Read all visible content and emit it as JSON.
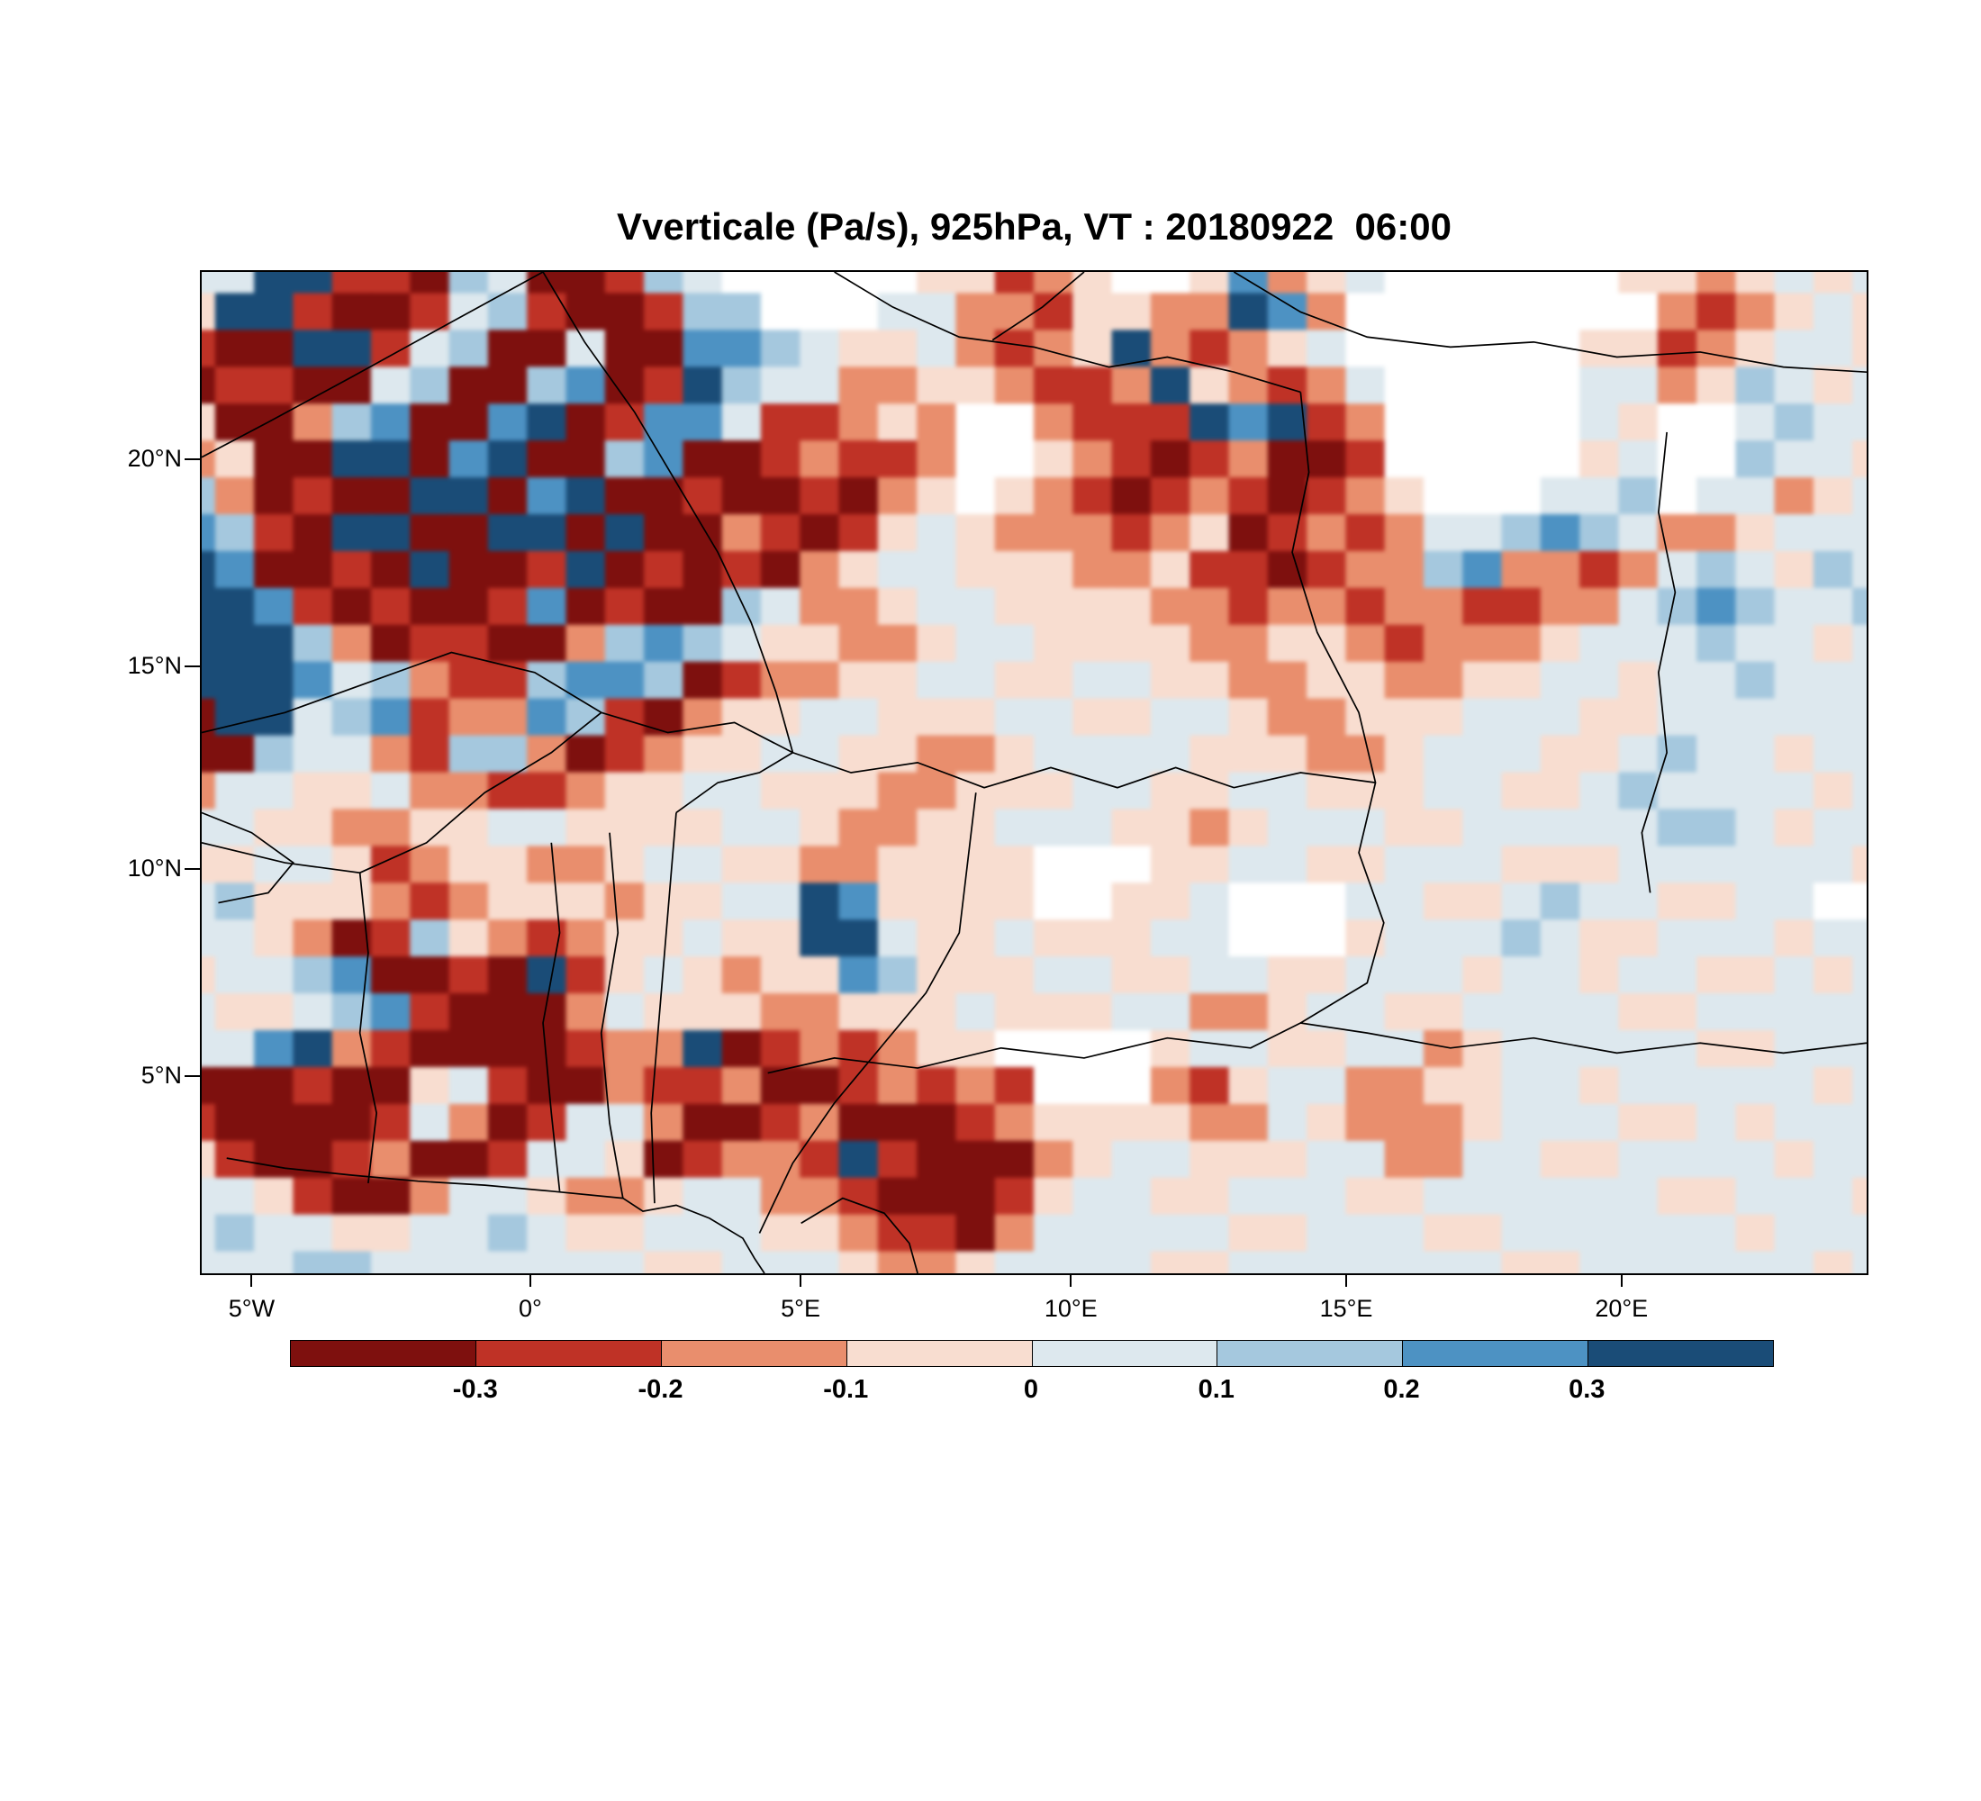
{
  "title": "Vverticale (Pa/s), 925hPa, VT : 20180922  06:00",
  "colorbar": {
    "tick_labels": [
      "-0.3",
      "-0.2",
      "-0.1",
      "0",
      "0.1",
      "0.2",
      "0.3"
    ]
  },
  "chart_data": {
    "type": "heatmap",
    "title": "Vverticale (Pa/s), 925hPa, VT : 20180922  06:00",
    "variable": "Vverticale",
    "units": "Pa/s",
    "pressure_level": "925hPa",
    "valid_time": "20180922 06:00",
    "x_ticks": [
      {
        "label": "5°W",
        "pos": 3.1
      },
      {
        "label": "0°",
        "pos": 19.8
      },
      {
        "label": "5°E",
        "pos": 36.0
      },
      {
        "label": "10°E",
        "pos": 52.2
      },
      {
        "label": "15°E",
        "pos": 68.7
      },
      {
        "label": "20°E",
        "pos": 85.2
      }
    ],
    "y_ticks": [
      {
        "label": "20°N",
        "pos": 18.8
      },
      {
        "label": "15°N",
        "pos": 39.4
      },
      {
        "label": "10°N",
        "pos": 59.6
      },
      {
        "label": "5°N",
        "pos": 80.2
      }
    ],
    "lon_range": [
      -6,
      24.5
    ],
    "lat_range": [
      0,
      24.6
    ],
    "levels": [
      -0.3,
      -0.2,
      -0.1,
      0,
      0.1,
      0.2,
      0.3
    ],
    "value_bins": [
      "<-0.3",
      "-0.3..-0.2",
      "-0.2..-0.1",
      "-0.1..0",
      "0..0.1",
      "0.1..0.2",
      "0.2..0.3",
      ">0.3"
    ],
    "palette": [
      "#7e100e",
      "#bf3226",
      "#e98e6d",
      "#f8ddd0",
      "#dde8ee",
      "#a5c8de",
      "#4d92c3",
      "#1a4c77"
    ],
    "nodata_color": "#ffffff",
    "grid_encoding": "each row string: chars 0-7 = palette bin index, w = no-data (white)",
    "grid": [
      "44771105400154wwwww33123ww36234wwwwww3323434",
      "377100145100155www442213322762wwwwwwww212343",
      "100771450040066543342123721234wwwwww33123443",
      "0110045005601754422332112732124wwwww44235434",
      "30025600670166411232ww211176712wwwww43ww4544",
      "23007706700560012112ww321012001wwwww34ww5443",
      "52010077067001001023w32101210123www445w44234",
      "65107700770700210134322212301212445654223444",
      "76001070017010102344333223110122562212454354",
      "77610100160100542234433332212212211224565445",
      "77752011002565433223443333223321222344454434",
      "77764521156650122334433443322332233443445444",
      "07745612265102334433344334432233344433444444",
      "00544215520123344332234444333223444334544344",
      "24433422112334433322333443344333443345444434",
      "44332233443333443223344433234443344444554344",
      "3344312332234433223333www3344334443334444443",
      "4533321233323344763333ww334www443345443344ww",
      "443201532123343377433433344www34445433444344",
      "34456001071343233653334433443344434434433434",
      "43345610002433322333433344223443344443344444",
      "446721000012270121233wwww3443344234444433444",
      "0001003410021120012121www2134422334434444434",
      "10000142014420012000123333224322234443343444",
      "31001200144301221710002344333442244334444344",
      "44310024432234422100013443344433444444334443",
      "45443344543344433211024444433444334444443444",
      "44455444444433444322344443344444443344444434"
    ],
    "borders": [
      [
        [
          20.5,
          0
        ],
        [
          15,
          5
        ],
        [
          9,
          10.5
        ],
        [
          4,
          15
        ],
        [
          0,
          18.5
        ]
      ],
      [
        [
          20.5,
          0
        ],
        [
          23,
          7
        ],
        [
          26,
          14
        ],
        [
          28.5,
          21
        ],
        [
          31,
          28
        ],
        [
          33,
          35
        ],
        [
          34.5,
          42
        ],
        [
          35.5,
          48
        ]
      ],
      [
        [
          38,
          0
        ],
        [
          41.5,
          3.5
        ],
        [
          45.5,
          6.5
        ],
        [
          50,
          7.5
        ],
        [
          54.5,
          9.5
        ],
        [
          58,
          8.5
        ],
        [
          62,
          10
        ],
        [
          66,
          12
        ]
      ],
      [
        [
          53,
          0
        ],
        [
          50.5,
          3.5
        ],
        [
          47.5,
          6.8
        ]
      ],
      [
        [
          62,
          0
        ],
        [
          66,
          4
        ],
        [
          70,
          6.5
        ],
        [
          75,
          7.5
        ],
        [
          80,
          7
        ],
        [
          85,
          8.5
        ],
        [
          90,
          8
        ],
        [
          95,
          9.5
        ],
        [
          100,
          10
        ]
      ],
      [
        [
          66,
          12
        ],
        [
          66.5,
          20
        ],
        [
          65.5,
          28
        ],
        [
          67,
          36
        ],
        [
          69.5,
          44
        ],
        [
          70.5,
          51
        ],
        [
          69.5,
          58
        ],
        [
          71,
          65
        ],
        [
          70,
          71
        ],
        [
          66,
          75
        ]
      ],
      [
        [
          24,
          44
        ],
        [
          28,
          46
        ],
        [
          32,
          45
        ],
        [
          35.5,
          48
        ],
        [
          39,
          50
        ],
        [
          43,
          49
        ],
        [
          47,
          51.5
        ],
        [
          51,
          49.5
        ],
        [
          55,
          51.5
        ],
        [
          58.5,
          49.5
        ],
        [
          62,
          51.5
        ],
        [
          66,
          50
        ],
        [
          70.5,
          51
        ]
      ],
      [
        [
          24,
          44
        ],
        [
          20,
          40
        ],
        [
          15,
          38
        ],
        [
          10,
          41
        ],
        [
          5,
          44
        ],
        [
          0,
          46
        ]
      ],
      [
        [
          24,
          44
        ],
        [
          21,
          48
        ],
        [
          17,
          52
        ],
        [
          13.5,
          57
        ],
        [
          9.5,
          60
        ],
        [
          5,
          59
        ],
        [
          0,
          57
        ]
      ],
      [
        [
          9.5,
          60
        ],
        [
          10,
          68
        ],
        [
          9.5,
          76
        ],
        [
          10.5,
          84
        ],
        [
          10,
          91
        ]
      ],
      [
        [
          21,
          57
        ],
        [
          21.5,
          66
        ],
        [
          20.5,
          75
        ],
        [
          21,
          84
        ],
        [
          21.5,
          91.8
        ]
      ],
      [
        [
          24.5,
          56
        ],
        [
          25,
          66
        ],
        [
          24,
          76
        ],
        [
          24.5,
          85
        ],
        [
          25.3,
          92.5
        ]
      ],
      [
        [
          28.5,
          54
        ],
        [
          28,
          64
        ],
        [
          27.5,
          74
        ],
        [
          27,
          84
        ],
        [
          27.2,
          93
        ]
      ],
      [
        [
          28.5,
          54
        ],
        [
          31,
          51
        ],
        [
          33.5,
          50
        ],
        [
          35.5,
          48
        ]
      ],
      [
        [
          1.5,
          88.5
        ],
        [
          5,
          89.5
        ],
        [
          9,
          90.2
        ],
        [
          13,
          90.8
        ],
        [
          17,
          91.2
        ],
        [
          21,
          91.8
        ],
        [
          25.3,
          92.5
        ],
        [
          26.5,
          93.8
        ],
        [
          28.5,
          93.2
        ],
        [
          30.5,
          94.5
        ],
        [
          32.5,
          96.5
        ],
        [
          33.2,
          98.5
        ],
        [
          33.8,
          100
        ]
      ],
      [
        [
          33.5,
          96
        ],
        [
          35.5,
          89
        ],
        [
          38,
          83
        ],
        [
          41,
          77
        ],
        [
          43.5,
          72
        ],
        [
          45.5,
          66
        ],
        [
          46,
          59
        ],
        [
          46.5,
          52
        ]
      ],
      [
        [
          34,
          80
        ],
        [
          38,
          78.5
        ],
        [
          43,
          79.5
        ],
        [
          48,
          77.5
        ],
        [
          53,
          78.5
        ],
        [
          58,
          76.5
        ],
        [
          63,
          77.5
        ],
        [
          66,
          75
        ],
        [
          70,
          76
        ],
        [
          75,
          77.5
        ],
        [
          80,
          76.5
        ],
        [
          85,
          78
        ],
        [
          90,
          77
        ],
        [
          95,
          78
        ],
        [
          100,
          77
        ]
      ],
      [
        [
          88,
          16
        ],
        [
          87.5,
          24
        ],
        [
          88.5,
          32
        ],
        [
          87.5,
          40
        ],
        [
          88,
          48
        ],
        [
          86.5,
          56
        ],
        [
          87,
          62
        ]
      ],
      [
        [
          36,
          95
        ],
        [
          38.5,
          92.5
        ],
        [
          41,
          94
        ],
        [
          42.5,
          97
        ],
        [
          43,
          100
        ]
      ],
      [
        [
          0,
          54
        ],
        [
          3,
          56
        ],
        [
          5.5,
          59
        ],
        [
          4,
          62
        ],
        [
          1,
          63
        ]
      ]
    ]
  }
}
